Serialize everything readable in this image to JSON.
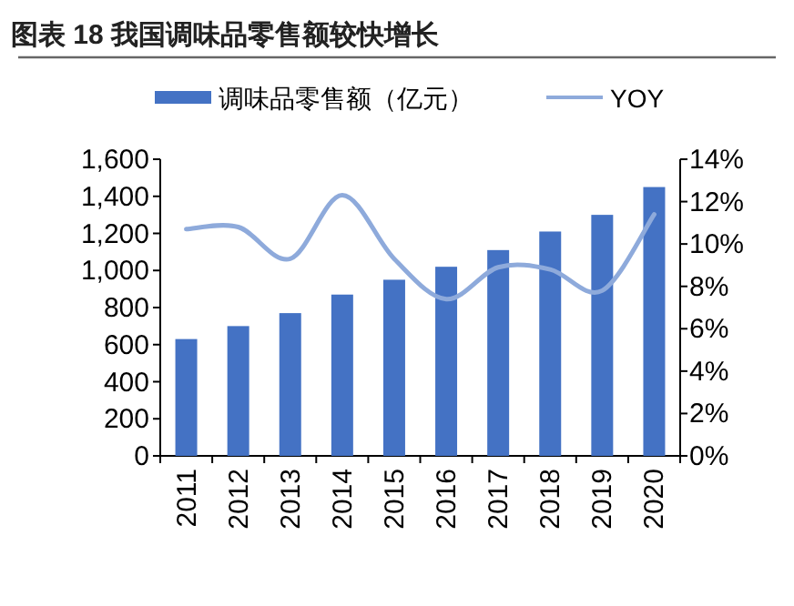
{
  "chart_data": {
    "type": "bar",
    "title": "图表 18 我国调味品零售额较快增长",
    "categories": [
      "2011",
      "2012",
      "2013",
      "2014",
      "2015",
      "2016",
      "2017",
      "2018",
      "2019",
      "2020"
    ],
    "series": [
      {
        "name": "调味品零售额（亿元）",
        "color": "#4472c4",
        "values": [
          630,
          700,
          770,
          870,
          950,
          1020,
          1110,
          1210,
          1300,
          1450
        ]
      },
      {
        "name": "YOY",
        "type": "line",
        "axis": "y2",
        "color": "#8eaadb",
        "values": [
          10.7,
          10.8,
          9.3,
          12.3,
          9.3,
          7.4,
          8.9,
          8.8,
          7.8,
          11.4
        ]
      }
    ],
    "ylim": [
      0,
      1600
    ],
    "yticks": [
      0,
      200,
      400,
      600,
      800,
      {
        "value": 1000,
        "label": "1,000"
      },
      {
        "value": 1200,
        "label": "1,200"
      },
      {
        "value": 1400,
        "label": "1,400"
      },
      {
        "value": 1600,
        "label": "1,600"
      }
    ],
    "y2lim": [
      0,
      14
    ],
    "y2ticks": [
      {
        "value": 0,
        "label": "0%"
      },
      {
        "value": 2,
        "label": "2%"
      },
      {
        "value": 4,
        "label": "4%"
      },
      {
        "value": 6,
        "label": "6%"
      },
      {
        "value": 8,
        "label": "8%"
      },
      {
        "value": 10,
        "label": "10%"
      },
      {
        "value": 12,
        "label": "12%"
      },
      {
        "value": 14,
        "label": "14%"
      }
    ],
    "legend": "top",
    "grid": false
  }
}
